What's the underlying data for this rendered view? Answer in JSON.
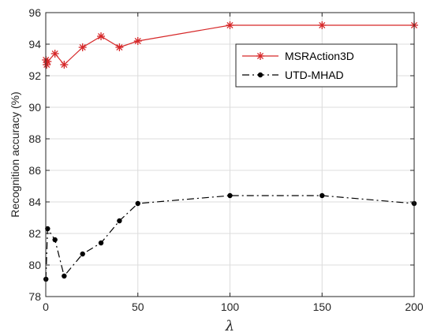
{
  "chart_data": {
    "type": "line",
    "xlabel": "λ",
    "ylabel": "Recognition accuracy (%)",
    "xlim": [
      0,
      200
    ],
    "ylim": [
      78,
      96
    ],
    "xticks": [
      0,
      50,
      100,
      150,
      200
    ],
    "yticks": [
      78,
      80,
      82,
      84,
      86,
      88,
      90,
      92,
      94,
      96
    ],
    "grid": true,
    "legend_position": "top-right",
    "series": [
      {
        "name": "MSRAction3D",
        "color": "#d62728",
        "line_style": "solid",
        "marker": "asterisk",
        "x": [
          0.1,
          0.5,
          1,
          5,
          10,
          20,
          30,
          40,
          50,
          100,
          150,
          200
        ],
        "y": [
          93.0,
          92.7,
          92.9,
          93.4,
          92.7,
          93.8,
          94.5,
          93.8,
          94.2,
          95.2,
          95.2,
          95.2
        ]
      },
      {
        "name": "UTD-MHAD",
        "color": "#000000",
        "line_style": "dash-dot",
        "marker": "dot",
        "x": [
          0.1,
          1,
          5,
          10,
          20,
          30,
          40,
          50,
          100,
          150,
          200
        ],
        "y": [
          79.1,
          82.3,
          81.6,
          79.3,
          80.7,
          81.4,
          82.8,
          83.9,
          84.4,
          84.4,
          83.9
        ]
      }
    ]
  }
}
